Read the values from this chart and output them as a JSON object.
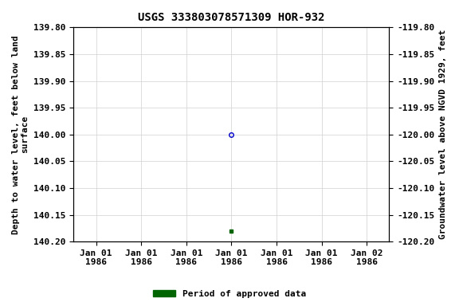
{
  "title": "USGS 333803078571309 HOR-932",
  "ylabel_left": "Depth to water level, feet below land\nsurface",
  "ylabel_right": "Groundwater level above NGVD 1929, feet",
  "ylim_left": [
    139.8,
    140.2
  ],
  "ylim_right": [
    -119.8,
    -120.2
  ],
  "yticks_left": [
    139.8,
    139.85,
    139.9,
    139.95,
    140.0,
    140.05,
    140.1,
    140.15,
    140.2
  ],
  "yticks_right": [
    -119.8,
    -119.85,
    -119.9,
    -119.95,
    -120.0,
    -120.05,
    -120.1,
    -120.15,
    -120.2
  ],
  "data_open": {
    "date_num": 0,
    "value": 140.0,
    "color": "#0000cc",
    "marker": "o",
    "fillstyle": "none",
    "markersize": 4,
    "markeredgewidth": 1.0
  },
  "data_approved": {
    "date_num": 0,
    "value": 140.18,
    "color": "#006400",
    "marker": "s",
    "fillstyle": "full",
    "markersize": 3
  },
  "legend_label": "Period of approved data",
  "legend_color": "#006400",
  "background_color": "#ffffff",
  "plot_bg_color": "#ffffff",
  "grid_color": "#d0d0d0",
  "title_fontsize": 10,
  "label_fontsize": 8,
  "tick_fontsize": 8,
  "legend_fontsize": 8,
  "xlim_days": [
    -3.5,
    3.5
  ],
  "xtick_offsets": [
    -3,
    -2,
    -1,
    0,
    1,
    2,
    3
  ],
  "xtick_labels": [
    "Jan 01\n1986",
    "Jan 01\n1986",
    "Jan 01\n1986",
    "Jan 01\n1986",
    "Jan 01\n1986",
    "Jan 01\n1986",
    "Jan 02\n1986"
  ]
}
